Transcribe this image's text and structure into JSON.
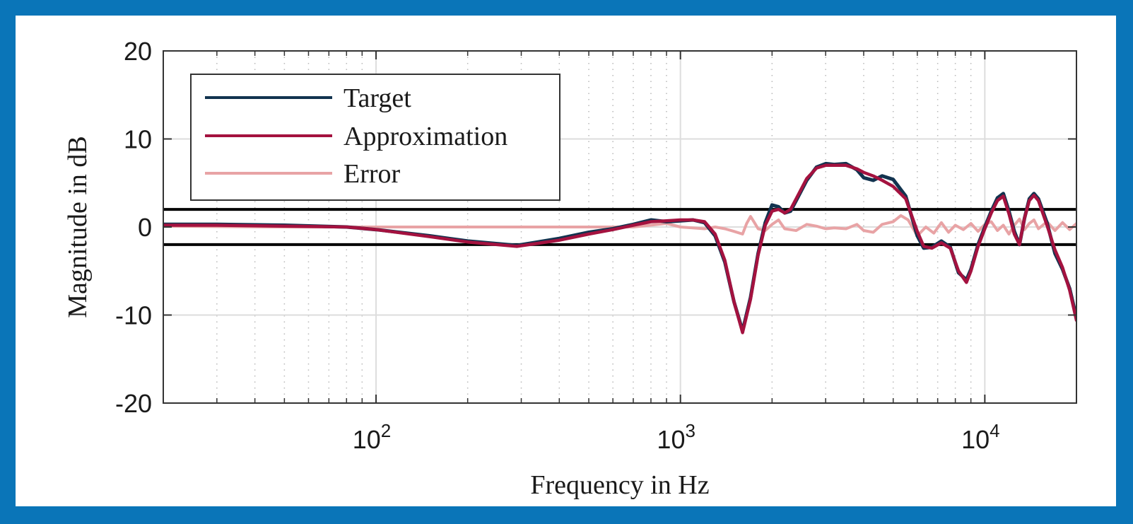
{
  "chart_data": {
    "type": "line",
    "xlabel": "Frequency in Hz",
    "ylabel": "Magnitude in dB",
    "x_scale": "log",
    "xlim": [
      20,
      20000
    ],
    "ylim": [
      -20,
      20
    ],
    "x_ticks": [
      {
        "value": 100,
        "base": "10",
        "exp": "2"
      },
      {
        "value": 1000,
        "base": "10",
        "exp": "3"
      },
      {
        "value": 10000,
        "base": "10",
        "exp": "4"
      }
    ],
    "y_ticks": [
      {
        "value": -20,
        "label": "-20"
      },
      {
        "value": -10,
        "label": "-10"
      },
      {
        "value": 0,
        "label": "0"
      },
      {
        "value": 10,
        "label": "10"
      },
      {
        "value": 20,
        "label": "20"
      }
    ],
    "grid": true,
    "minor_grid": true,
    "legend_position": "top-left",
    "threshold_lines": [
      2,
      -2
    ],
    "series": [
      {
        "name": "Target",
        "color": "#12334f",
        "x": [
          20,
          30,
          50,
          80,
          100,
          150,
          200,
          290,
          400,
          500,
          600,
          700,
          800,
          900,
          1000,
          1100,
          1200,
          1300,
          1400,
          1500,
          1600,
          1700,
          1800,
          1900,
          2000,
          2100,
          2200,
          2300,
          2400,
          2600,
          2800,
          3000,
          3200,
          3500,
          3800,
          4000,
          4300,
          4600,
          5000,
          5500,
          6000,
          6300,
          6700,
          7200,
          7700,
          8200,
          8700,
          9000,
          9500,
          10000,
          10500,
          11000,
          11500,
          12000,
          12500,
          13000,
          13500,
          14000,
          14500,
          15000,
          16000,
          17000,
          18000,
          19000,
          20000
        ],
        "y": [
          0.3,
          0.3,
          0.2,
          0,
          -0.3,
          -1,
          -1.6,
          -2.1,
          -1.3,
          -0.6,
          -0.2,
          0.3,
          0.8,
          0.6,
          0.7,
          0.8,
          0.5,
          -1,
          -4,
          -8.5,
          -11.8,
          -8,
          -3,
          0.5,
          2.5,
          2.3,
          1.6,
          1.8,
          3,
          5.3,
          6.8,
          7.2,
          7.1,
          7.2,
          6.5,
          5.6,
          5.3,
          5.8,
          5.4,
          3.5,
          -1,
          -2.4,
          -2.3,
          -1.6,
          -2.3,
          -5.2,
          -6,
          -4.8,
          -2,
          0,
          1.8,
          3.3,
          3.8,
          1.8,
          -0.5,
          -2,
          1,
          3.2,
          3.8,
          3.2,
          0.5,
          -3,
          -4.8,
          -7,
          -10.3
        ]
      },
      {
        "name": "Approximation",
        "color": "#a4123f",
        "x": [
          20,
          30,
          50,
          80,
          100,
          150,
          200,
          290,
          400,
          500,
          600,
          700,
          800,
          900,
          1000,
          1100,
          1200,
          1300,
          1400,
          1500,
          1600,
          1700,
          1800,
          1900,
          2000,
          2100,
          2200,
          2300,
          2400,
          2600,
          2800,
          3000,
          3200,
          3500,
          3800,
          4000,
          4300,
          4600,
          5000,
          5500,
          6000,
          6300,
          6700,
          7200,
          7700,
          8200,
          8700,
          9000,
          9500,
          10000,
          10500,
          11000,
          11500,
          12000,
          12500,
          13000,
          13500,
          14000,
          14500,
          15000,
          16000,
          17000,
          18000,
          19000,
          20000
        ],
        "y": [
          0.2,
          0.2,
          0.1,
          0,
          -0.3,
          -1.1,
          -1.7,
          -2.2,
          -1.5,
          -0.8,
          -0.3,
          0.2,
          0.6,
          0.7,
          0.8,
          0.8,
          0.6,
          -0.8,
          -3.8,
          -8.5,
          -12,
          -8.2,
          -3.2,
          0.2,
          1.8,
          2,
          1.6,
          2,
          3.2,
          5.5,
          6.7,
          7,
          7,
          7,
          6.6,
          6.2,
          5.8,
          5.3,
          4.6,
          3.2,
          -0.5,
          -2.2,
          -2.4,
          -1.8,
          -2.4,
          -5,
          -6.3,
          -5,
          -2.2,
          -0.2,
          1.6,
          3,
          3.5,
          1.5,
          -0.8,
          -2,
          1,
          3,
          3.6,
          3,
          0.2,
          -2.6,
          -4.6,
          -7.2,
          -10.6
        ]
      },
      {
        "name": "Error",
        "color": "#e8a3a5",
        "x": [
          20,
          50,
          100,
          200,
          400,
          700,
          900,
          1000,
          1200,
          1300,
          1400,
          1500,
          1600,
          1650,
          1700,
          1750,
          1800,
          1900,
          2000,
          2100,
          2200,
          2400,
          2600,
          2800,
          3000,
          3200,
          3500,
          3800,
          4000,
          4300,
          4600,
          5000,
          5300,
          5600,
          6000,
          6400,
          6800,
          7200,
          7600,
          8000,
          8500,
          9000,
          9500,
          10000,
          10500,
          11000,
          11500,
          12000,
          12500,
          13000,
          13500,
          14000,
          14500,
          15000,
          16000,
          17000,
          18000,
          19000,
          20000
        ],
        "y": [
          0.1,
          0,
          0,
          0,
          0,
          0,
          0.4,
          0,
          -0.2,
          0,
          -0.2,
          -0.5,
          -0.8,
          0.4,
          1.2,
          0.5,
          -0.2,
          -0.4,
          0.3,
          0.8,
          -0.2,
          -0.4,
          0.3,
          0.1,
          -0.2,
          -0.1,
          -0.2,
          0.3,
          -0.4,
          -0.6,
          0.3,
          0.6,
          1.3,
          0.8,
          -1,
          0,
          -0.7,
          0.5,
          -0.6,
          0.2,
          -0.3,
          0.4,
          -0.5,
          0.3,
          0.6,
          -0.4,
          0.2,
          -0.8,
          0.2,
          0.9,
          -0.3,
          0.4,
          0.8,
          -0.2,
          0.6,
          -0.4,
          0.5,
          -0.3,
          0.4
        ]
      }
    ]
  }
}
